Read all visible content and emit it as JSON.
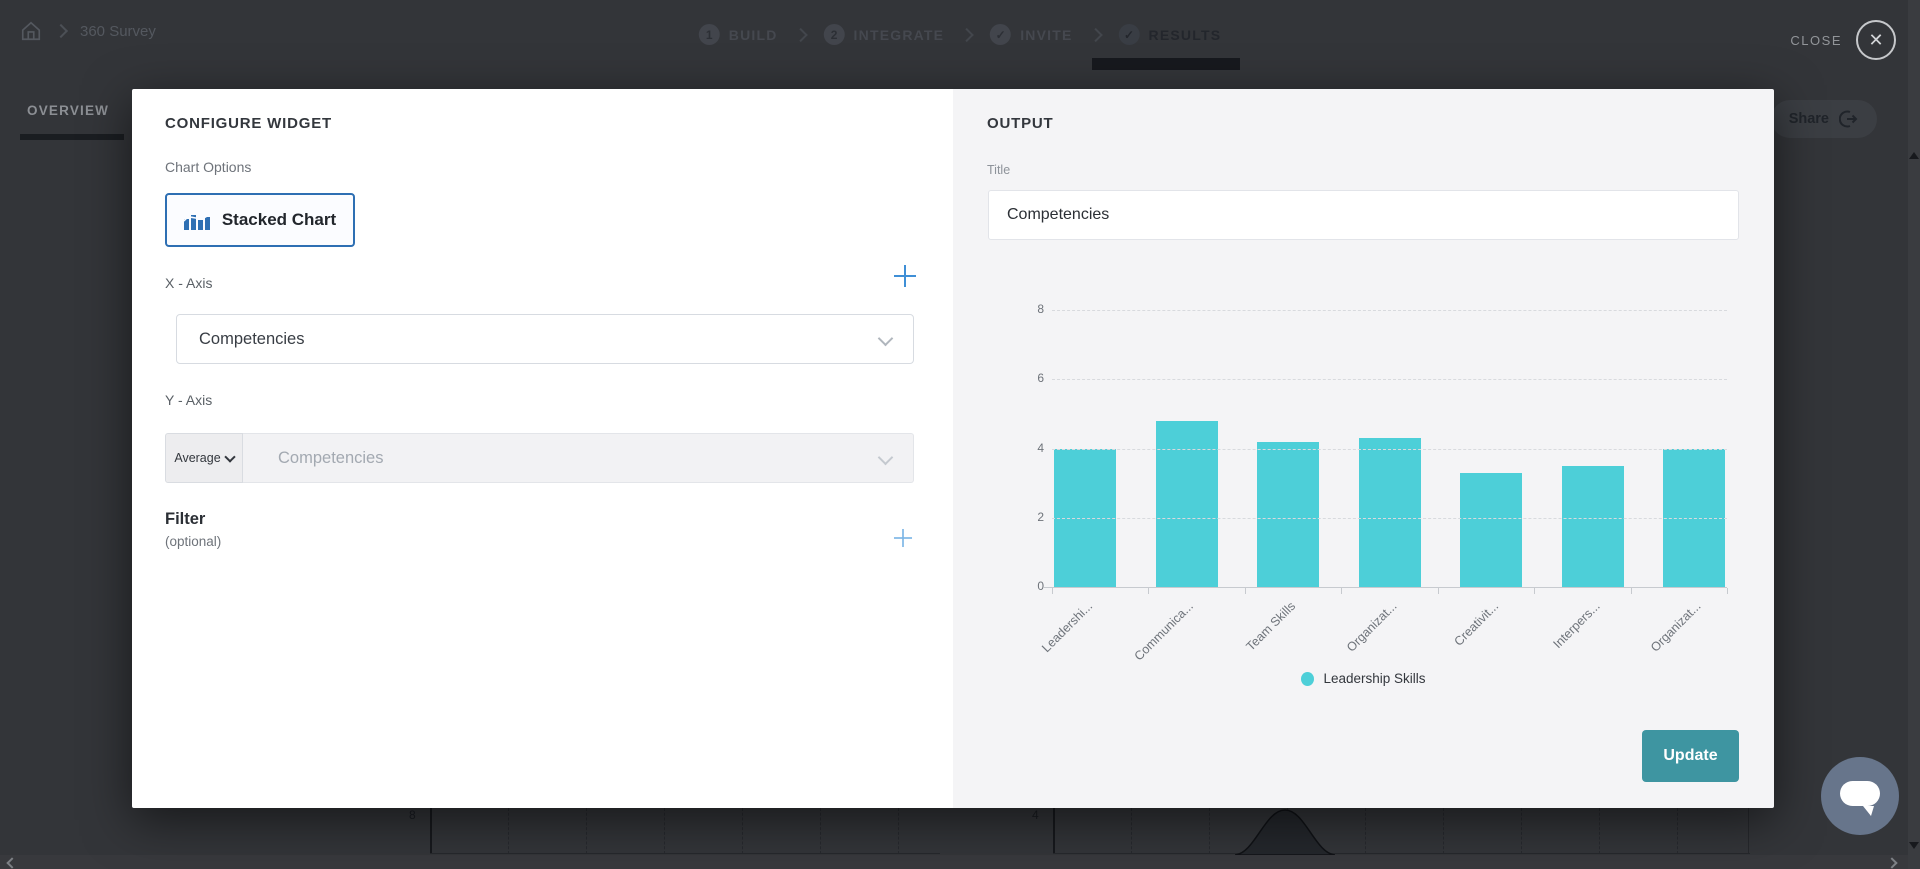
{
  "page": {
    "breadcrumb": {
      "title": "360 Survey"
    },
    "stepper": {
      "steps": [
        {
          "marker": "1",
          "label": "BUILD"
        },
        {
          "marker": "2",
          "label": "INTEGRATE"
        },
        {
          "marker": "✓",
          "label": "INVITE"
        },
        {
          "marker": "✓",
          "label": "RESULTS"
        }
      ],
      "active_step": "RESULTS"
    },
    "close_label": "CLOSE",
    "tabs": {
      "overview": "OVERVIEW"
    },
    "share_label": "Share",
    "background_fragments": {
      "left_axis_tick": "8",
      "right_axis_tick": "4"
    }
  },
  "modal": {
    "configure": {
      "heading": "CONFIGURE WIDGET",
      "chart_options_label": "Chart Options",
      "chart_type": "Stacked Chart",
      "x_axis": {
        "label": "X - Axis",
        "value": "Competencies"
      },
      "y_axis": {
        "label": "Y - Axis",
        "aggregation": "Average",
        "value": "Competencies"
      },
      "filter": {
        "label": "Filter",
        "hint": "(optional)"
      }
    },
    "output": {
      "heading": "OUTPUT",
      "title_label": "Title",
      "title_value": "Competencies",
      "update_label": "Update"
    }
  },
  "chart_data": {
    "type": "bar",
    "title": "Competencies",
    "categories": [
      "Leadershi...",
      "Communica...",
      "Team Skills",
      "Organizat...",
      "Creativit...",
      "Interpers...",
      "Organizat..."
    ],
    "values": [
      4,
      4.8,
      4.2,
      4.3,
      3.3,
      3.5,
      4
    ],
    "series_name": "Leadership Skills",
    "legend": [
      "Leadership Skills"
    ],
    "legend_position": "bottom",
    "xlabel": "",
    "ylabel": "",
    "ylim": [
      0,
      8
    ],
    "yticks": [
      0,
      2,
      4,
      6,
      8
    ],
    "grid": "horizontal-dashed",
    "bar_color": "#4dcfd8",
    "label_rotation": -45
  },
  "colors": {
    "accent_blue": "#2e6fb3",
    "plus_blue": "#3f8fd6",
    "bar_teal": "#4dcfd8",
    "update_teal": "#3e95a1",
    "output_panel_bg": "#f4f4f6",
    "overlay_bg": "#333539"
  }
}
